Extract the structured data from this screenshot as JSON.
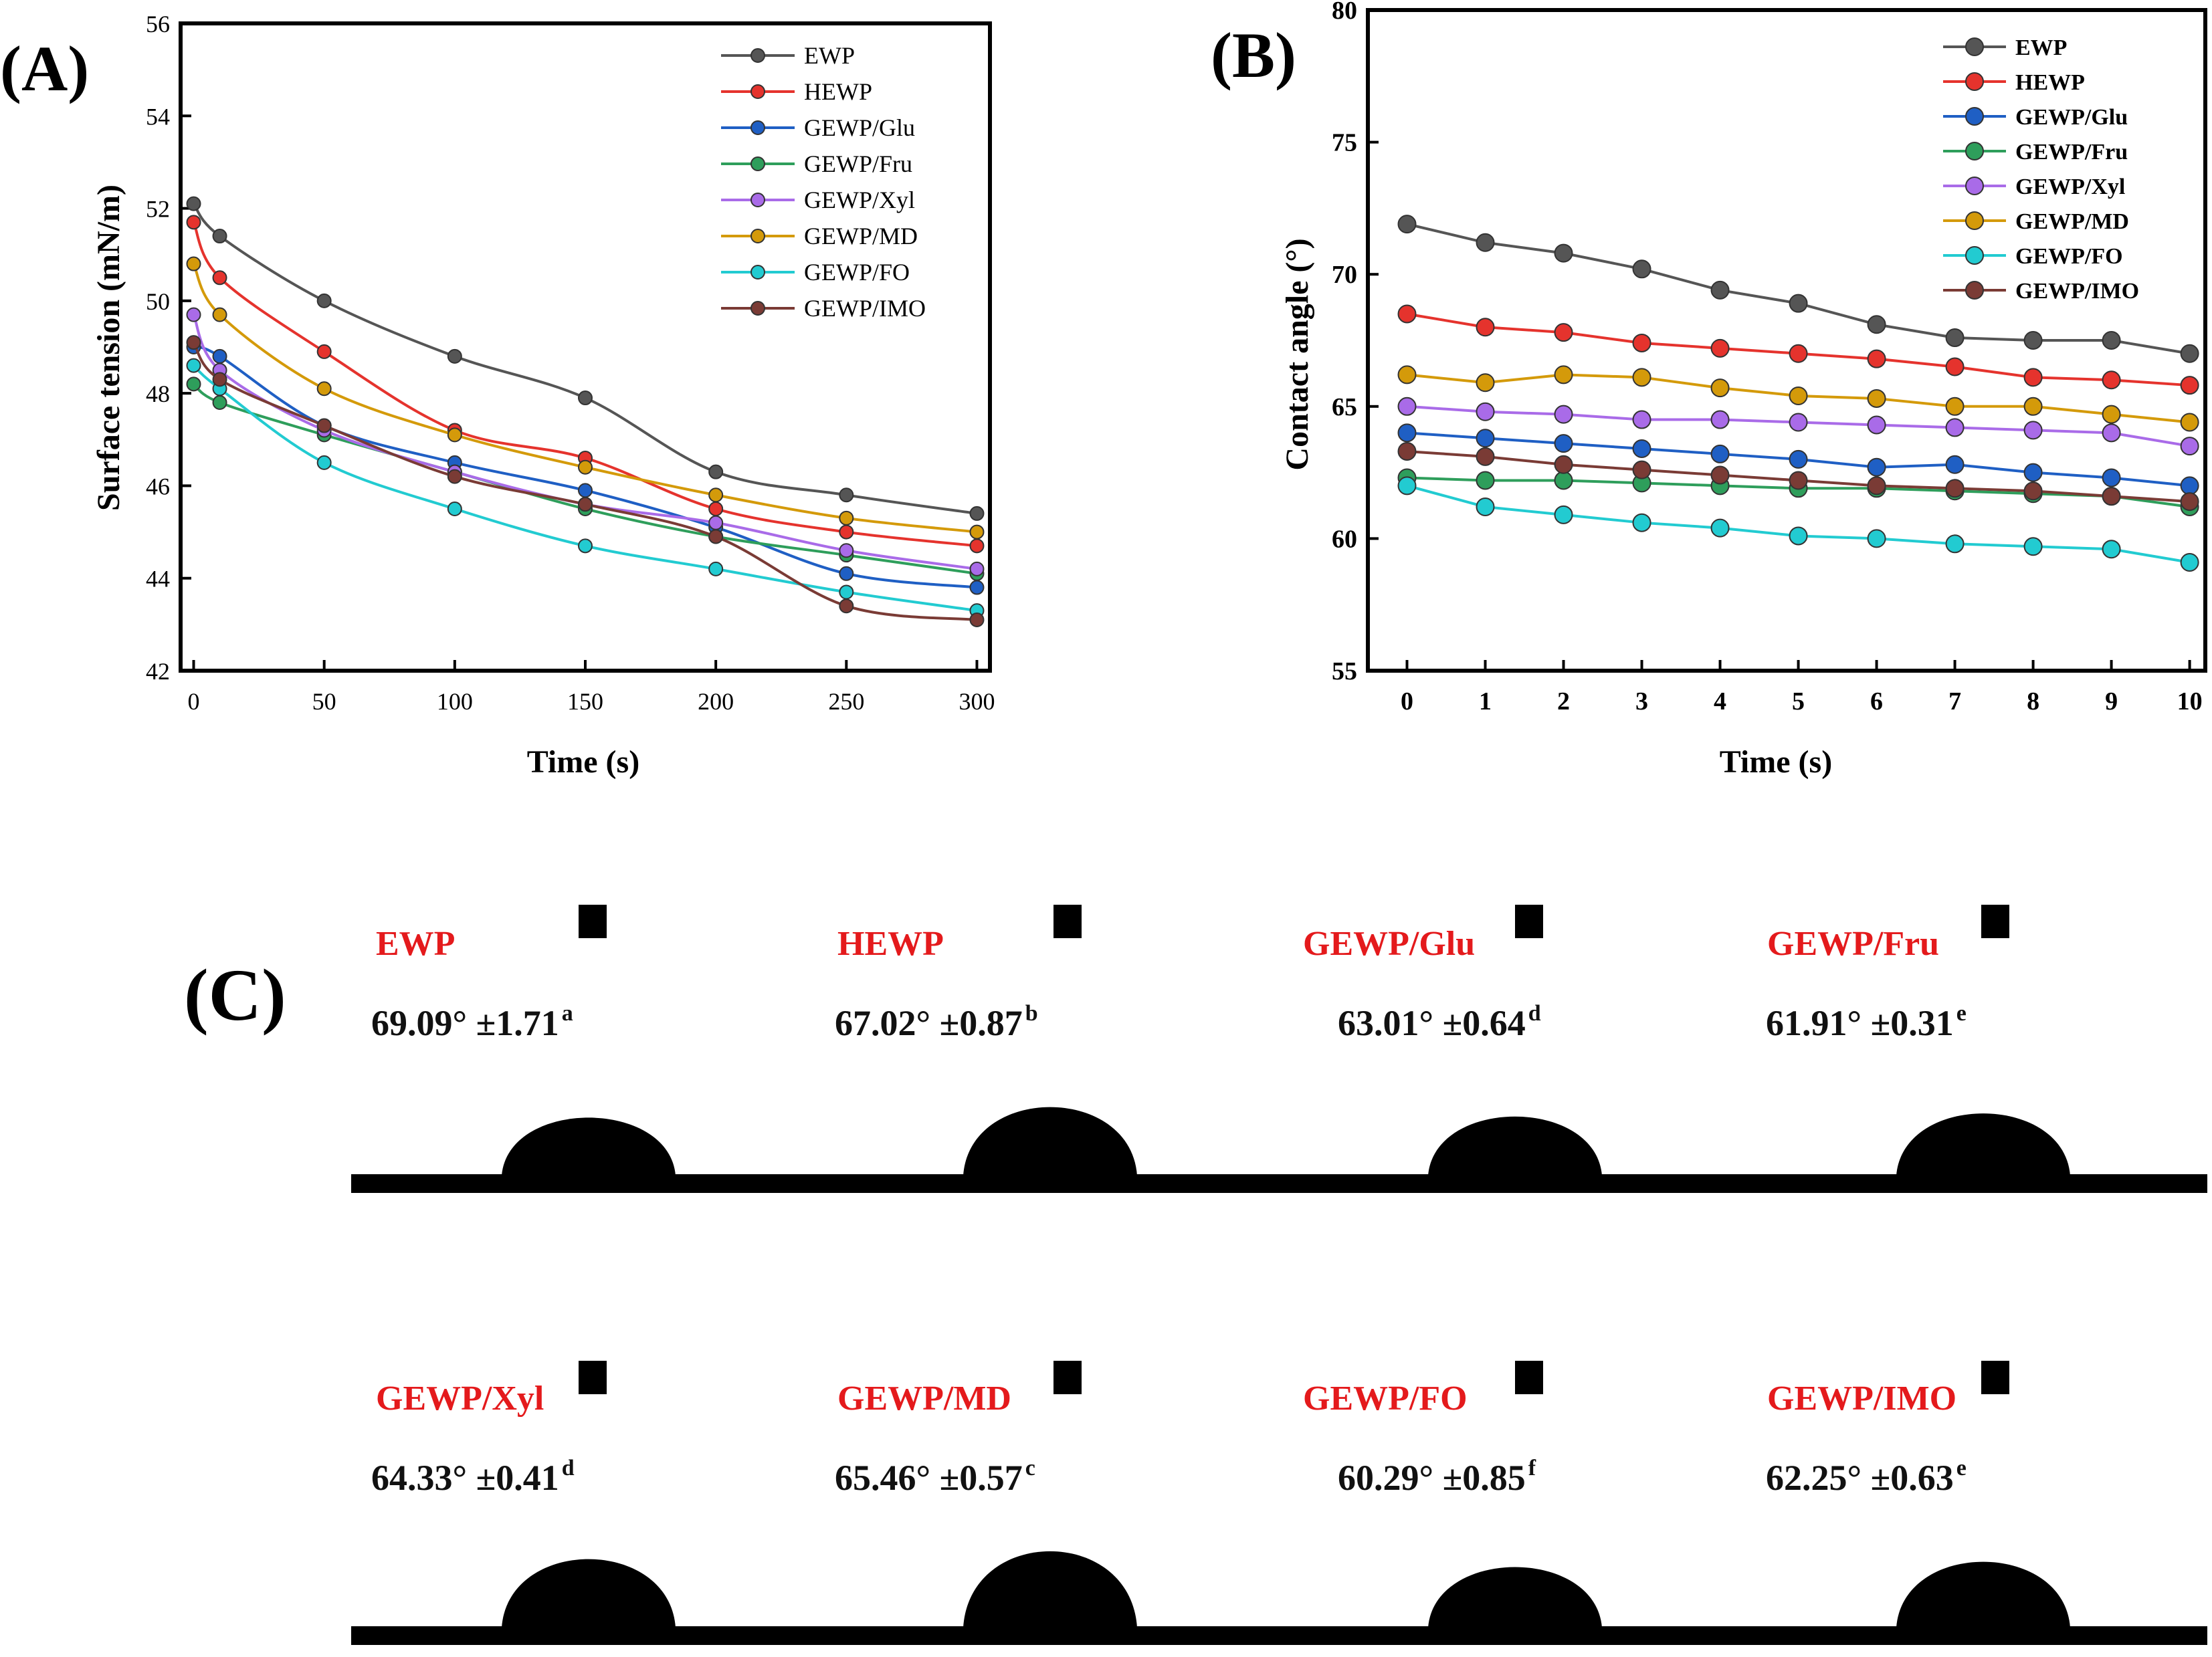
{
  "chart_data": [
    {
      "type": "line",
      "panel_label": "(A)",
      "xlabel": "Time (s)",
      "ylabel": "Surface tension (mN/m)",
      "xlim": [
        -5,
        305
      ],
      "ylim": [
        42,
        56
      ],
      "xticks": [
        0,
        50,
        100,
        150,
        200,
        250,
        300
      ],
      "yticks": [
        42,
        44,
        46,
        48,
        50,
        52,
        54,
        56
      ],
      "x": [
        0,
        10,
        50,
        100,
        150,
        200,
        250,
        300
      ],
      "legend_position": "top-right",
      "series": [
        {
          "name": "EWP",
          "color": "#555555",
          "values": [
            52.1,
            51.4,
            50.0,
            48.8,
            47.9,
            46.3,
            45.8,
            45.4
          ]
        },
        {
          "name": "HEWP",
          "color": "#e5332d",
          "values": [
            51.7,
            50.5,
            48.9,
            47.2,
            46.6,
            45.5,
            45.0,
            44.7
          ]
        },
        {
          "name": "GEWP/Glu",
          "color": "#1f5fc4",
          "values": [
            49.0,
            48.8,
            47.3,
            46.5,
            45.9,
            45.1,
            44.1,
            43.8
          ]
        },
        {
          "name": "GEWP/Fru",
          "color": "#2e9e5b",
          "values": [
            48.2,
            47.8,
            47.1,
            46.3,
            45.5,
            44.9,
            44.5,
            44.1
          ]
        },
        {
          "name": "GEWP/Xyl",
          "color": "#a96be8",
          "values": [
            49.7,
            48.5,
            47.2,
            46.3,
            45.6,
            45.2,
            44.6,
            44.2
          ]
        },
        {
          "name": "GEWP/MD",
          "color": "#d49a0a",
          "values": [
            50.8,
            49.7,
            48.1,
            47.1,
            46.4,
            45.8,
            45.3,
            45.0
          ]
        },
        {
          "name": "GEWP/FO",
          "color": "#22cbd1",
          "values": [
            48.6,
            48.1,
            46.5,
            45.5,
            44.7,
            44.2,
            43.7,
            43.3
          ]
        },
        {
          "name": "GEWP/IMO",
          "color": "#7a3b35",
          "values": [
            49.1,
            48.3,
            47.3,
            46.2,
            45.6,
            44.9,
            43.4,
            43.1
          ]
        }
      ]
    },
    {
      "type": "line",
      "panel_label": "(B)",
      "xlabel": "Time (s)",
      "ylabel": "Contact angle (°)",
      "xlim": [
        -0.5,
        10.2
      ],
      "ylim": [
        55,
        80
      ],
      "xticks": [
        0,
        1,
        2,
        3,
        4,
        5,
        6,
        7,
        8,
        9,
        10
      ],
      "yticks": [
        55,
        60,
        65,
        70,
        75,
        80
      ],
      "x": [
        0,
        1,
        2,
        3,
        4,
        5,
        6,
        7,
        8,
        9,
        10
      ],
      "legend_position": "top-right",
      "series": [
        {
          "name": "EWP",
          "color": "#555555",
          "values": [
            71.9,
            71.2,
            70.8,
            70.2,
            69.4,
            68.9,
            68.1,
            67.6,
            67.5,
            67.5,
            67.0
          ]
        },
        {
          "name": "HEWP",
          "color": "#e5332d",
          "values": [
            68.5,
            68.0,
            67.8,
            67.4,
            67.2,
            67.0,
            66.8,
            66.5,
            66.1,
            66.0,
            65.8
          ]
        },
        {
          "name": "GEWP/Glu",
          "color": "#1f5fc4",
          "values": [
            64.0,
            63.8,
            63.6,
            63.4,
            63.2,
            63.0,
            62.7,
            62.8,
            62.5,
            62.3,
            62.0
          ]
        },
        {
          "name": "GEWP/Fru",
          "color": "#2e9e5b",
          "values": [
            62.3,
            62.2,
            62.2,
            62.1,
            62.0,
            61.9,
            61.9,
            61.8,
            61.7,
            61.6,
            61.2
          ]
        },
        {
          "name": "GEWP/Xyl",
          "color": "#a96be8",
          "values": [
            65.0,
            64.8,
            64.7,
            64.5,
            64.5,
            64.4,
            64.3,
            64.2,
            64.1,
            64.0,
            63.5
          ]
        },
        {
          "name": "GEWP/MD",
          "color": "#d49a0a",
          "values": [
            66.2,
            65.9,
            66.2,
            66.1,
            65.7,
            65.4,
            65.3,
            65.0,
            65.0,
            64.7,
            64.4
          ]
        },
        {
          "name": "GEWP/FO",
          "color": "#22cbd1",
          "values": [
            62.0,
            61.2,
            60.9,
            60.6,
            60.4,
            60.1,
            60.0,
            59.8,
            59.7,
            59.6,
            59.1
          ]
        },
        {
          "name": "GEWP/IMO",
          "color": "#7a3b35",
          "values": [
            63.3,
            63.1,
            62.8,
            62.6,
            62.4,
            62.2,
            62.0,
            61.9,
            61.8,
            61.6,
            61.4
          ]
        }
      ]
    }
  ],
  "panel_c": {
    "label": "(C)",
    "drops": [
      {
        "name": "EWP",
        "angle": "69.09°",
        "sd": "±1.71",
        "sup": "a"
      },
      {
        "name": "HEWP",
        "angle": "67.02°",
        "sd": "±0.87",
        "sup": "b"
      },
      {
        "name": "GEWP/Glu",
        "angle": "63.01°",
        "sd": "±0.64",
        "sup": "d"
      },
      {
        "name": "GEWP/Fru",
        "angle": "61.91°",
        "sd": "±0.31",
        "sup": "e"
      },
      {
        "name": "GEWP/Xyl",
        "angle": "64.33°",
        "sd": "±0.41",
        "sup": "d"
      },
      {
        "name": "GEWP/MD",
        "angle": "65.46°",
        "sd": "±0.57",
        "sup": "c"
      },
      {
        "name": "GEWP/FO",
        "angle": "60.29°",
        "sd": "±0.85",
        "sup": "f"
      },
      {
        "name": "GEWP/IMO",
        "angle": "62.25°",
        "sd": "±0.63",
        "sup": "e"
      }
    ]
  }
}
